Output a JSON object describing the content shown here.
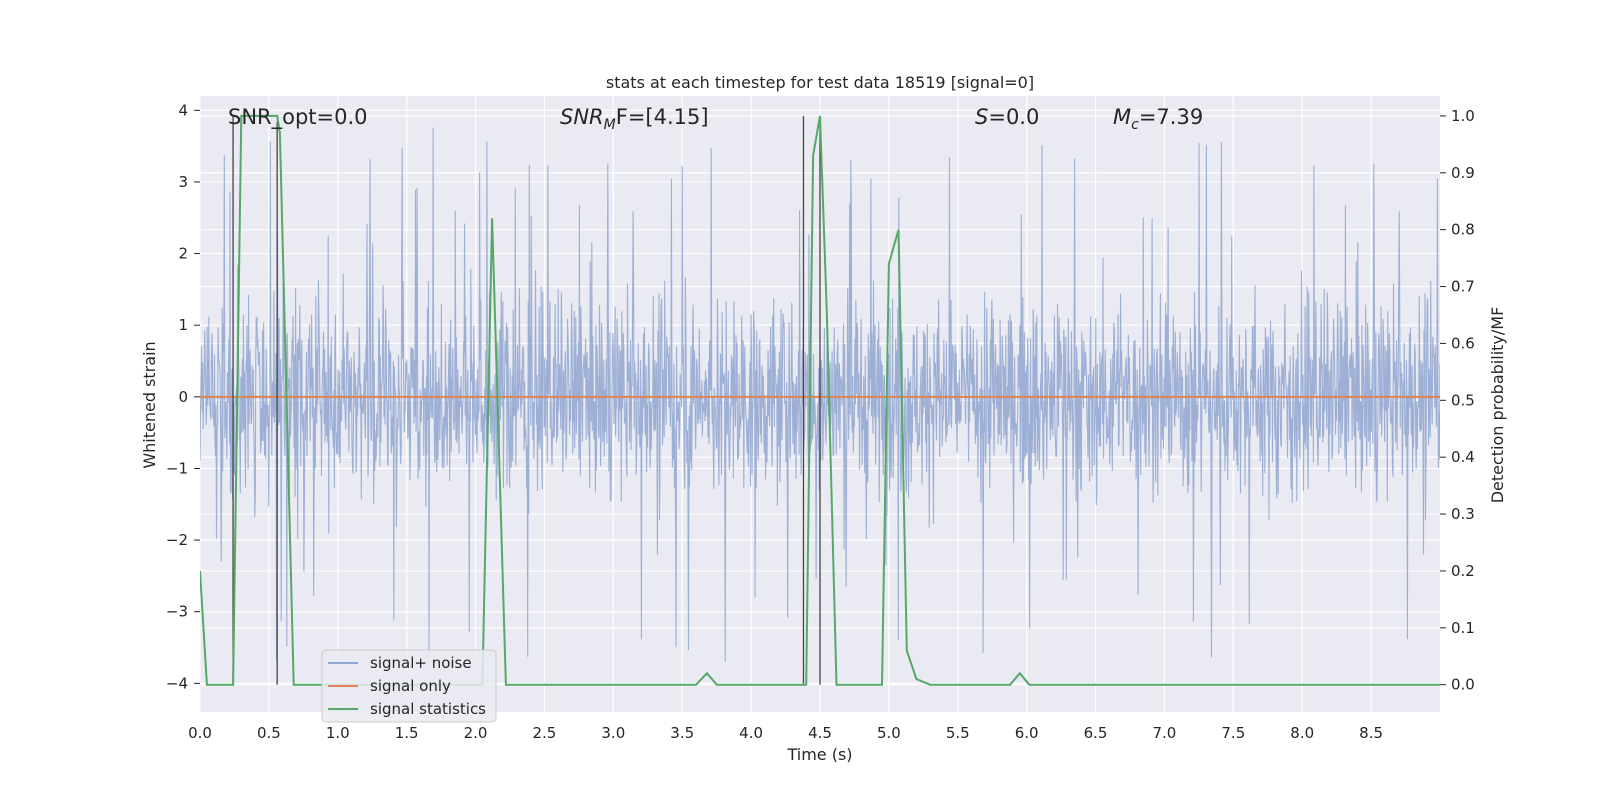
{
  "chart_data": {
    "type": "line",
    "title": "stats at each timestep for test data 18519 [signal=0]",
    "xlabel": "Time (s)",
    "ylabel": "Whitened strain",
    "y2label": "Detection probability/MF",
    "xlim": [
      0,
      9.0
    ],
    "ylim": [
      -4.4,
      4.2
    ],
    "y2lim": [
      -0.048,
      1.035
    ],
    "xticks": [
      "0.0",
      "0.5",
      "1.0",
      "1.5",
      "2.0",
      "2.5",
      "3.0",
      "3.5",
      "4.0",
      "4.5",
      "5.0",
      "5.5",
      "6.0",
      "6.5",
      "7.0",
      "7.5",
      "8.0",
      "8.5"
    ],
    "yticks": [
      "4",
      "3",
      "2",
      "1",
      "0",
      "−1",
      "−2",
      "−3",
      "−4"
    ],
    "y2ticks": [
      "1.0",
      "0.9",
      "0.8",
      "0.7",
      "0.6",
      "0.5",
      "0.4",
      "0.3",
      "0.2",
      "0.1",
      "0.0"
    ],
    "grid": true,
    "legend_position": "lower-left",
    "annotations": {
      "snr_opt": "SNR_opt=0.0",
      "snr_mf_sym": "SNR",
      "snr_mf_sub": "M",
      "snr_mf_tail": "F=[4.15]",
      "s_sym": "S",
      "s_val": "=0.0",
      "mc_sym": "M",
      "mc_sub": "c",
      "mc_val": "=7.39"
    },
    "series": [
      {
        "name": "signal+ noise",
        "color": "#8fa5cf",
        "description_of_values": "whitened strain noise, roughly within ±2 with spikes to ±4",
        "envelope_upper": 2.0,
        "envelope_lower": -2.0,
        "spike_max": 3.8,
        "spike_min": -4.0
      },
      {
        "name": "signal only",
        "color": "#dd8452",
        "x": [
          0,
          9.0
        ],
        "y": [
          0,
          0
        ]
      },
      {
        "name": "signal statistics",
        "color": "#55a868",
        "axis": "right",
        "x": [
          0.0,
          0.05,
          0.24,
          0.3,
          0.56,
          0.58,
          0.68,
          2.05,
          2.12,
          2.22,
          3.6,
          3.68,
          3.75,
          4.4,
          4.45,
          4.5,
          4.55,
          4.62,
          4.88,
          4.95,
          5.0,
          5.07,
          5.13,
          5.2,
          5.3,
          5.88,
          5.95,
          6.02,
          6.1,
          9.0
        ],
        "y": [
          0.2,
          0.0,
          0.0,
          1.0,
          1.0,
          0.97,
          0.0,
          0.0,
          0.82,
          0.0,
          0.0,
          0.02,
          0.0,
          0.0,
          0.93,
          1.0,
          0.65,
          0.0,
          0.0,
          0.0,
          0.74,
          0.8,
          0.06,
          0.01,
          0.0,
          0.0,
          0.02,
          0.0,
          0.0,
          0.0
        ]
      }
    ],
    "vertical_markers": [
      {
        "x": 0.24,
        "y2_top": 1.0
      },
      {
        "x": 0.56,
        "y2_top": 0.99
      },
      {
        "x": 4.38,
        "y2_top": 1.0
      },
      {
        "x": 4.5,
        "y2_top": 1.0
      }
    ]
  }
}
